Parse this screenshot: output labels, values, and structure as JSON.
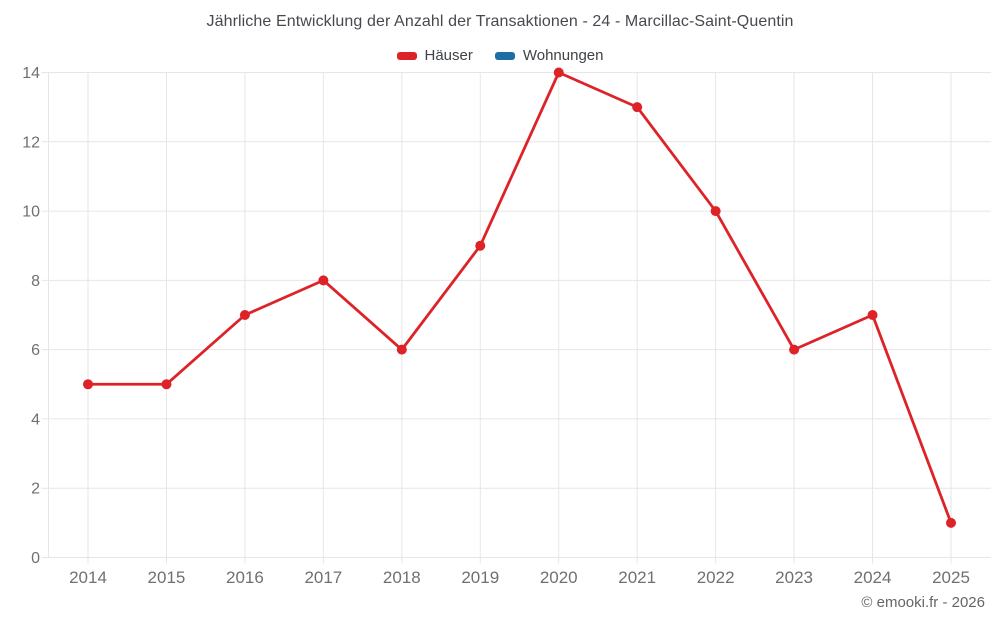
{
  "title": "Jährliche Entwicklung der Anzahl der Transaktionen - 24 - Marcillac-Saint-Quentin",
  "legend": {
    "items": [
      {
        "id": "hauser",
        "label": "Häuser",
        "color": "#dd2328"
      },
      {
        "id": "wohnungen",
        "label": "Wohnungen",
        "color": "#1c6ea4"
      }
    ]
  },
  "footer": {
    "copyright": "© emooki.fr - 2026"
  },
  "colors": {
    "grid": "#e6e6e6",
    "axis_text": "#707070",
    "title_text": "#46494e",
    "hauser_red": "#dd2328",
    "wohnungen_blue": "#1c6ea4"
  },
  "chart_data": {
    "type": "line",
    "title": "Jährliche Entwicklung der Anzahl der Transaktionen - 24 - Marcillac-Saint-Quentin",
    "categories": [
      "2014",
      "2015",
      "2016",
      "2017",
      "2018",
      "2019",
      "2020",
      "2021",
      "2022",
      "2023",
      "2024",
      "2025"
    ],
    "series": [
      {
        "name": "Häuser",
        "color": "#dd2328",
        "values": [
          5,
          5,
          7,
          8,
          6,
          9,
          14,
          13,
          10,
          6,
          7,
          1
        ]
      },
      {
        "name": "Wohnungen",
        "color": "#1c6ea4",
        "values": []
      }
    ],
    "xlabel": "",
    "ylabel": "",
    "ylim": [
      0,
      14
    ],
    "ytick_step": 2,
    "grid": true,
    "legend_position": "top"
  }
}
